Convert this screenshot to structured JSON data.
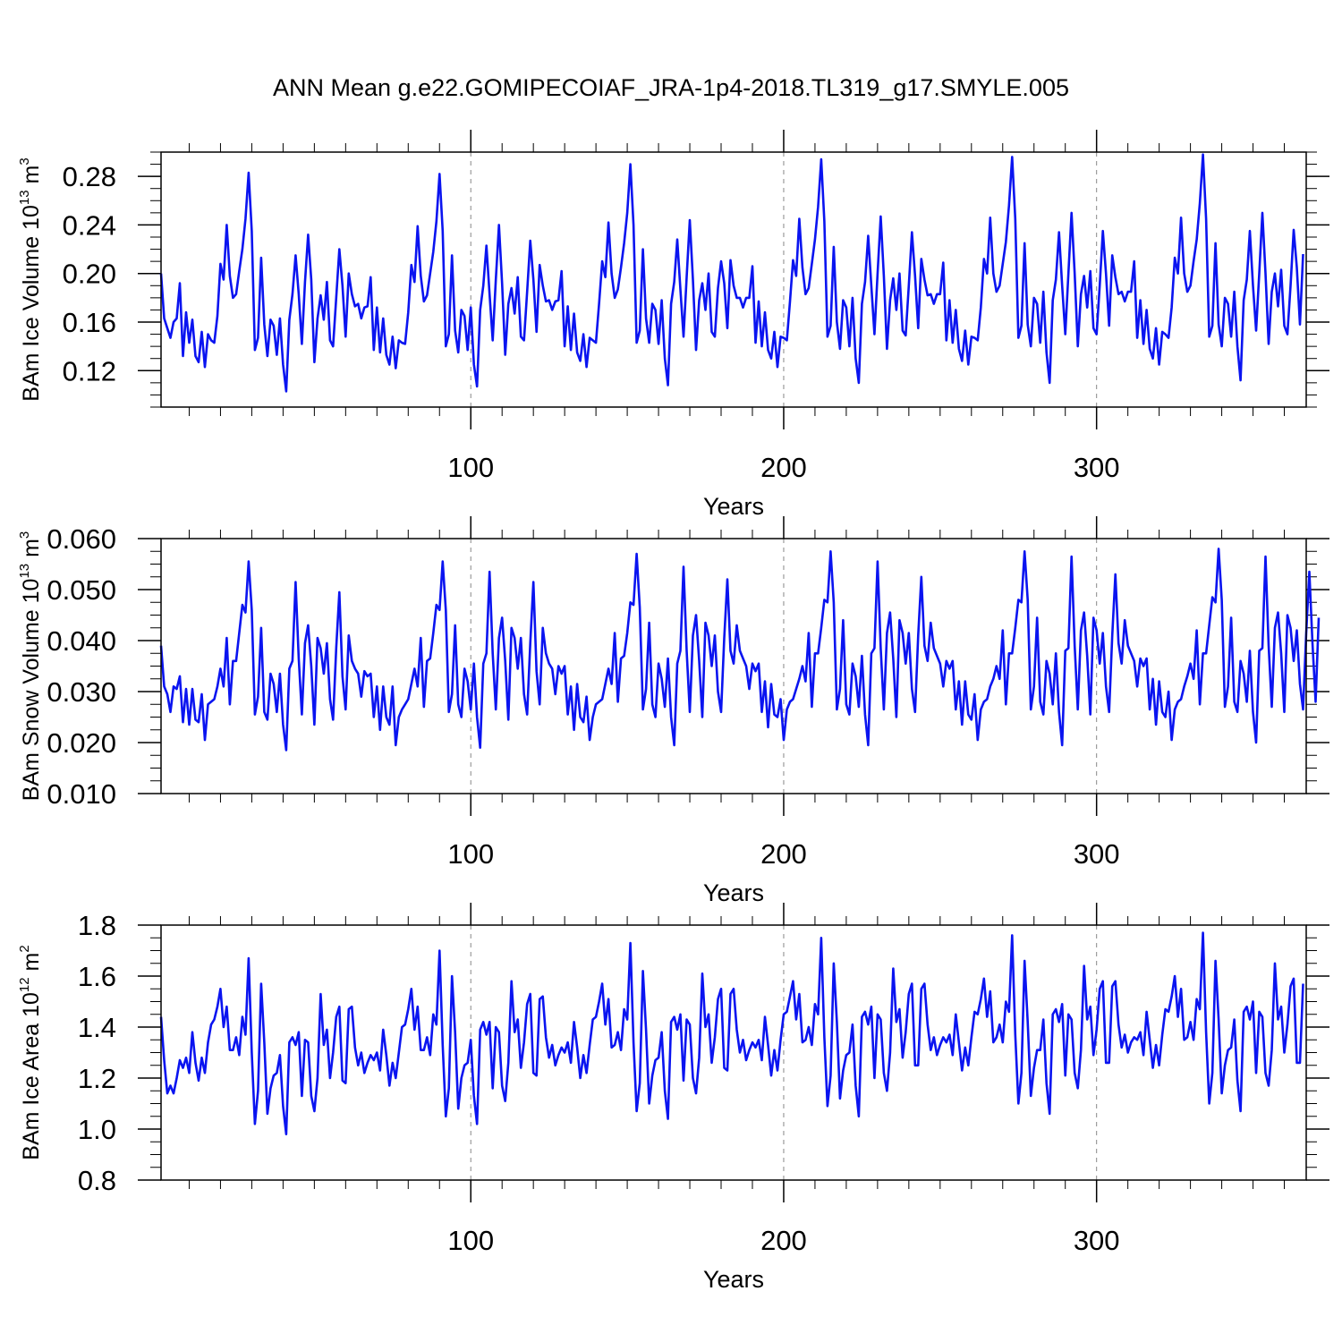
{
  "figure": {
    "title": "ANN Mean g.e22.GOMIPECOIAF_JRA-1p4-2018.TL319_g17.SMYLE.005"
  },
  "chart_data": [
    {
      "type": "line",
      "title": "",
      "xlabel": "Years",
      "ylabel_main": "BAm Ice Volume 10",
      "ylabel_exp": "13",
      "ylabel_unit": " m",
      "ylabel_unit_exp": "3",
      "xlim": [
        1,
        367
      ],
      "ylim": [
        0.09,
        0.3
      ],
      "xticks": [
        100,
        200,
        300
      ],
      "xtick_labels": [
        "100",
        "200",
        "300"
      ],
      "yticks": [
        0.12,
        0.16,
        0.2,
        0.24,
        0.28
      ],
      "ytick_labels": [
        "0.12",
        "0.16",
        "0.20",
        "0.24",
        "0.28"
      ],
      "grid_x": "dashed at major ticks",
      "color": "#0a14f0",
      "x_start": 1,
      "values": [
        0.2,
        0.163,
        0.155,
        0.147,
        0.16,
        0.163,
        0.192,
        0.132,
        0.168,
        0.143,
        0.162,
        0.132,
        0.127,
        0.152,
        0.123,
        0.15,
        0.145,
        0.143,
        0.165,
        0.208,
        0.195,
        0.24,
        0.198,
        0.18,
        0.183,
        0.202,
        0.22,
        0.245,
        0.283,
        0.235,
        0.137,
        0.147,
        0.213,
        0.158,
        0.132,
        0.162,
        0.157,
        0.133,
        0.163,
        0.125,
        0.103,
        0.162,
        0.183,
        0.215,
        0.183,
        0.142,
        0.193,
        0.232,
        0.195,
        0.127,
        0.163,
        0.182,
        0.162,
        0.193,
        0.145,
        0.14,
        0.18,
        0.22,
        0.19,
        0.148,
        0.2,
        0.183,
        0.173,
        0.175,
        0.163,
        0.172,
        0.173,
        0.197,
        0.137,
        0.172,
        0.135,
        0.163,
        0.133,
        0.125,
        0.148,
        0.122,
        0.145,
        0.143,
        0.142,
        0.168,
        0.207,
        0.193,
        0.239,
        0.198,
        0.177,
        0.182,
        0.2,
        0.218,
        0.243,
        0.282,
        0.235,
        0.14,
        0.15,
        0.215,
        0.153,
        0.135,
        0.17,
        0.165,
        0.137,
        0.172,
        0.125,
        0.107,
        0.17,
        0.19,
        0.223,
        0.183,
        0.145,
        0.195,
        0.24,
        0.192,
        0.133,
        0.175,
        0.188,
        0.167,
        0.197,
        0.148,
        0.145,
        0.185,
        0.227,
        0.195,
        0.152,
        0.207,
        0.19,
        0.177,
        0.178,
        0.17,
        0.177,
        0.178,
        0.202,
        0.14,
        0.173,
        0.137,
        0.167,
        0.135,
        0.128,
        0.15,
        0.123,
        0.147,
        0.145,
        0.143,
        0.175,
        0.21,
        0.197,
        0.242,
        0.2,
        0.18,
        0.187,
        0.205,
        0.225,
        0.25,
        0.29,
        0.24,
        0.143,
        0.153,
        0.22,
        0.163,
        0.143,
        0.175,
        0.17,
        0.142,
        0.178,
        0.13,
        0.108,
        0.175,
        0.193,
        0.228,
        0.187,
        0.148,
        0.197,
        0.244,
        0.195,
        0.137,
        0.178,
        0.192,
        0.17,
        0.2,
        0.152,
        0.148,
        0.188,
        0.21,
        0.192,
        0.155,
        0.211,
        0.19,
        0.18,
        0.18,
        0.172,
        0.18,
        0.18,
        0.206,
        0.143,
        0.177,
        0.14,
        0.168,
        0.137,
        0.13,
        0.152,
        0.123,
        0.148,
        0.147,
        0.145,
        0.177,
        0.211,
        0.198,
        0.245,
        0.205,
        0.183,
        0.188,
        0.208,
        0.228,
        0.255,
        0.294,
        0.243,
        0.148,
        0.157,
        0.222,
        0.16,
        0.138,
        0.178,
        0.172,
        0.14,
        0.18,
        0.13,
        0.11,
        0.175,
        0.193,
        0.231,
        0.19,
        0.15,
        0.2,
        0.247,
        0.198,
        0.138,
        0.178,
        0.196,
        0.17,
        0.2,
        0.153,
        0.149,
        0.19,
        0.234,
        0.198,
        0.155,
        0.212,
        0.195,
        0.182,
        0.183,
        0.175,
        0.183,
        0.183,
        0.209,
        0.145,
        0.178,
        0.143,
        0.17,
        0.138,
        0.128,
        0.153,
        0.125,
        0.148,
        0.147,
        0.145,
        0.172,
        0.212,
        0.2,
        0.246,
        0.2,
        0.185,
        0.19,
        0.208,
        0.226,
        0.256,
        0.296,
        0.245,
        0.147,
        0.157,
        0.225,
        0.158,
        0.14,
        0.18,
        0.175,
        0.143,
        0.185,
        0.135,
        0.11,
        0.178,
        0.195,
        0.234,
        0.19,
        0.15,
        0.2,
        0.25,
        0.2,
        0.14,
        0.183,
        0.198,
        0.172,
        0.202,
        0.155,
        0.15,
        0.19,
        0.235,
        0.2,
        0.157,
        0.215,
        0.197,
        0.183,
        0.185,
        0.177,
        0.185,
        0.185,
        0.21,
        0.147,
        0.178,
        0.142,
        0.17,
        0.138,
        0.13,
        0.155,
        0.125,
        0.152,
        0.15,
        0.147,
        0.172,
        0.213,
        0.2,
        0.246,
        0.2,
        0.185,
        0.19,
        0.21,
        0.228,
        0.258,
        0.298,
        0.245,
        0.148,
        0.157,
        0.225,
        0.158,
        0.14,
        0.18,
        0.175,
        0.148,
        0.185,
        0.14,
        0.112,
        0.178,
        0.195,
        0.235,
        0.19,
        0.153,
        0.2,
        0.25,
        0.2,
        0.142,
        0.185,
        0.2,
        0.173,
        0.203,
        0.157,
        0.15,
        0.19,
        0.236,
        0.205,
        0.158,
        0.216
      ]
    },
    {
      "type": "line",
      "title": "",
      "xlabel": "Years",
      "ylabel_main": "BAm Snow Volume 10",
      "ylabel_exp": "13",
      "ylabel_unit": " m",
      "ylabel_unit_exp": "3",
      "xlim": [
        1,
        367
      ],
      "ylim": [
        0.01,
        0.06
      ],
      "xticks": [
        100,
        200,
        300
      ],
      "xtick_labels": [
        "100",
        "200",
        "300"
      ],
      "yticks": [
        0.01,
        0.02,
        0.03,
        0.04,
        0.05,
        0.06
      ],
      "ytick_labels": [
        "0.010",
        "0.020",
        "0.030",
        "0.040",
        "0.050",
        "0.060"
      ],
      "grid_x": "dashed at major ticks",
      "color": "#0a14f0",
      "x_start": 1,
      "values": [
        0.039,
        0.031,
        0.0295,
        0.026,
        0.031,
        0.0305,
        0.033,
        0.024,
        0.0305,
        0.0235,
        0.0305,
        0.0245,
        0.024,
        0.0295,
        0.0205,
        0.0275,
        0.028,
        0.0285,
        0.031,
        0.0345,
        0.031,
        0.0405,
        0.0275,
        0.036,
        0.036,
        0.0415,
        0.047,
        0.0455,
        0.0555,
        0.046,
        0.0255,
        0.029,
        0.0425,
        0.026,
        0.0245,
        0.0335,
        0.0315,
        0.026,
        0.0335,
        0.0235,
        0.0185,
        0.0345,
        0.036,
        0.0515,
        0.0365,
        0.0255,
        0.0395,
        0.043,
        0.035,
        0.0235,
        0.0405,
        0.0385,
        0.0335,
        0.0395,
        0.0285,
        0.0245,
        0.0385,
        0.0495,
        0.033,
        0.0265,
        0.041,
        0.036,
        0.0345,
        0.0335,
        0.029,
        0.034,
        0.033,
        0.0335,
        0.025,
        0.031,
        0.0225,
        0.031,
        0.025,
        0.0235,
        0.031,
        0.0195,
        0.025,
        0.0265,
        0.0275,
        0.0285,
        0.0315,
        0.0345,
        0.031,
        0.0405,
        0.027,
        0.036,
        0.0365,
        0.0415,
        0.047,
        0.046,
        0.0555,
        0.046,
        0.026,
        0.0295,
        0.043,
        0.0275,
        0.025,
        0.0345,
        0.032,
        0.0265,
        0.0355,
        0.025,
        0.019,
        0.0355,
        0.0375,
        0.0535,
        0.0375,
        0.0265,
        0.0405,
        0.0445,
        0.036,
        0.0245,
        0.0425,
        0.0405,
        0.0345,
        0.0405,
        0.0295,
        0.0255,
        0.0395,
        0.0515,
        0.034,
        0.0275,
        0.0425,
        0.0375,
        0.0355,
        0.0345,
        0.0295,
        0.035,
        0.0335,
        0.035,
        0.0255,
        0.031,
        0.0225,
        0.0315,
        0.025,
        0.024,
        0.029,
        0.0205,
        0.025,
        0.0275,
        0.028,
        0.0285,
        0.0315,
        0.0345,
        0.0315,
        0.0415,
        0.028,
        0.0365,
        0.037,
        0.0415,
        0.0475,
        0.047,
        0.057,
        0.0465,
        0.0265,
        0.0305,
        0.0435,
        0.0275,
        0.025,
        0.0355,
        0.0325,
        0.027,
        0.0365,
        0.025,
        0.0195,
        0.0355,
        0.038,
        0.0545,
        0.038,
        0.026,
        0.041,
        0.045,
        0.036,
        0.025,
        0.0435,
        0.041,
        0.035,
        0.041,
        0.03,
        0.026,
        0.0405,
        0.052,
        0.038,
        0.0355,
        0.043,
        0.038,
        0.0365,
        0.035,
        0.0305,
        0.0355,
        0.034,
        0.0355,
        0.026,
        0.032,
        0.023,
        0.0315,
        0.0255,
        0.025,
        0.0285,
        0.0205,
        0.0265,
        0.028,
        0.0285,
        0.0305,
        0.0325,
        0.035,
        0.032,
        0.0415,
        0.027,
        0.0375,
        0.0375,
        0.0425,
        0.048,
        0.0475,
        0.0575,
        0.0475,
        0.0265,
        0.0305,
        0.044,
        0.0275,
        0.0255,
        0.0355,
        0.033,
        0.027,
        0.037,
        0.0255,
        0.0195,
        0.0375,
        0.0385,
        0.0555,
        0.0385,
        0.0265,
        0.0415,
        0.0455,
        0.0365,
        0.025,
        0.044,
        0.0415,
        0.0355,
        0.0415,
        0.0305,
        0.026,
        0.041,
        0.0525,
        0.039,
        0.036,
        0.0435,
        0.0385,
        0.037,
        0.0355,
        0.031,
        0.036,
        0.0345,
        0.036,
        0.0265,
        0.032,
        0.0235,
        0.032,
        0.0255,
        0.0245,
        0.0295,
        0.0205,
        0.0265,
        0.028,
        0.0285,
        0.031,
        0.0325,
        0.035,
        0.0325,
        0.042,
        0.0275,
        0.0375,
        0.0375,
        0.0425,
        0.048,
        0.0475,
        0.0575,
        0.048,
        0.0265,
        0.031,
        0.0445,
        0.028,
        0.0255,
        0.036,
        0.0335,
        0.0275,
        0.0375,
        0.026,
        0.0195,
        0.038,
        0.0385,
        0.0565,
        0.039,
        0.0265,
        0.042,
        0.0455,
        0.037,
        0.0255,
        0.0445,
        0.042,
        0.0355,
        0.0415,
        0.031,
        0.026,
        0.041,
        0.053,
        0.0395,
        0.0355,
        0.044,
        0.039,
        0.0375,
        0.036,
        0.031,
        0.0365,
        0.035,
        0.0365,
        0.0265,
        0.0325,
        0.0235,
        0.032,
        0.026,
        0.025,
        0.03,
        0.0205,
        0.0265,
        0.028,
        0.0285,
        0.031,
        0.033,
        0.0355,
        0.0325,
        0.042,
        0.0275,
        0.0375,
        0.0375,
        0.043,
        0.0485,
        0.0475,
        0.058,
        0.048,
        0.027,
        0.031,
        0.0445,
        0.028,
        0.026,
        0.036,
        0.0335,
        0.028,
        0.038,
        0.026,
        0.02,
        0.038,
        0.0385,
        0.0565,
        0.039,
        0.027,
        0.0425,
        0.0455,
        0.0375,
        0.026,
        0.045,
        0.0425,
        0.036,
        0.042,
        0.0315,
        0.0265,
        0.0415,
        0.0535,
        0.0395,
        0.028,
        0.0445
      ]
    },
    {
      "type": "line",
      "title": "",
      "xlabel": "Years",
      "ylabel_main": "BAm Ice Area 10",
      "ylabel_exp": "12",
      "ylabel_unit": " m",
      "ylabel_unit_exp": "2",
      "xlim": [
        1,
        367
      ],
      "ylim": [
        0.8,
        1.8
      ],
      "xticks": [
        100,
        200,
        300
      ],
      "xtick_labels": [
        "100",
        "200",
        "300"
      ],
      "yticks": [
        0.8,
        1.0,
        1.2,
        1.4,
        1.6,
        1.8
      ],
      "ytick_labels": [
        "0.8",
        "1.0",
        "1.2",
        "1.4",
        "1.6",
        "1.8"
      ],
      "grid_x": "dashed at major ticks",
      "color": "#0a14f0",
      "x_start": 1,
      "values": [
        1.44,
        1.27,
        1.14,
        1.17,
        1.14,
        1.2,
        1.27,
        1.24,
        1.28,
        1.22,
        1.38,
        1.26,
        1.19,
        1.28,
        1.22,
        1.34,
        1.41,
        1.43,
        1.48,
        1.55,
        1.4,
        1.48,
        1.31,
        1.31,
        1.36,
        1.29,
        1.44,
        1.37,
        1.67,
        1.3,
        1.02,
        1.15,
        1.57,
        1.34,
        1.06,
        1.16,
        1.21,
        1.22,
        1.29,
        1.09,
        0.98,
        1.34,
        1.36,
        1.33,
        1.38,
        1.13,
        1.35,
        1.34,
        1.13,
        1.07,
        1.2,
        1.53,
        1.33,
        1.39,
        1.2,
        1.3,
        1.44,
        1.48,
        1.19,
        1.18,
        1.47,
        1.48,
        1.32,
        1.25,
        1.3,
        1.22,
        1.26,
        1.29,
        1.27,
        1.3,
        1.23,
        1.39,
        1.29,
        1.17,
        1.26,
        1.2,
        1.3,
        1.4,
        1.41,
        1.47,
        1.55,
        1.39,
        1.48,
        1.31,
        1.31,
        1.36,
        1.29,
        1.45,
        1.41,
        1.7,
        1.33,
        1.05,
        1.16,
        1.6,
        1.38,
        1.08,
        1.2,
        1.25,
        1.26,
        1.35,
        1.13,
        1.02,
        1.39,
        1.42,
        1.37,
        1.42,
        1.16,
        1.4,
        1.38,
        1.17,
        1.11,
        1.26,
        1.58,
        1.38,
        1.43,
        1.24,
        1.34,
        1.49,
        1.53,
        1.22,
        1.21,
        1.51,
        1.52,
        1.36,
        1.28,
        1.33,
        1.25,
        1.29,
        1.32,
        1.3,
        1.34,
        1.26,
        1.42,
        1.32,
        1.2,
        1.29,
        1.22,
        1.33,
        1.43,
        1.44,
        1.5,
        1.57,
        1.41,
        1.51,
        1.32,
        1.33,
        1.38,
        1.31,
        1.47,
        1.43,
        1.73,
        1.34,
        1.07,
        1.18,
        1.62,
        1.39,
        1.1,
        1.21,
        1.27,
        1.28,
        1.38,
        1.15,
        1.04,
        1.42,
        1.44,
        1.39,
        1.45,
        1.19,
        1.43,
        1.41,
        1.2,
        1.14,
        1.28,
        1.61,
        1.4,
        1.45,
        1.26,
        1.36,
        1.51,
        1.55,
        1.24,
        1.23,
        1.53,
        1.55,
        1.39,
        1.3,
        1.35,
        1.27,
        1.31,
        1.34,
        1.32,
        1.35,
        1.27,
        1.44,
        1.33,
        1.21,
        1.31,
        1.23,
        1.35,
        1.45,
        1.46,
        1.52,
        1.58,
        1.43,
        1.53,
        1.34,
        1.35,
        1.4,
        1.33,
        1.49,
        1.45,
        1.75,
        1.36,
        1.09,
        1.21,
        1.65,
        1.42,
        1.12,
        1.23,
        1.29,
        1.3,
        1.41,
        1.17,
        1.05,
        1.44,
        1.46,
        1.41,
        1.48,
        1.2,
        1.45,
        1.43,
        1.22,
        1.15,
        1.3,
        1.63,
        1.42,
        1.47,
        1.28,
        1.38,
        1.53,
        1.57,
        1.25,
        1.25,
        1.55,
        1.57,
        1.41,
        1.31,
        1.36,
        1.29,
        1.33,
        1.36,
        1.34,
        1.37,
        1.29,
        1.45,
        1.34,
        1.23,
        1.32,
        1.25,
        1.36,
        1.46,
        1.45,
        1.51,
        1.59,
        1.44,
        1.54,
        1.34,
        1.36,
        1.41,
        1.34,
        1.5,
        1.46,
        1.76,
        1.37,
        1.1,
        1.22,
        1.66,
        1.42,
        1.13,
        1.24,
        1.31,
        1.31,
        1.43,
        1.18,
        1.06,
        1.45,
        1.47,
        1.42,
        1.49,
        1.21,
        1.45,
        1.43,
        1.22,
        1.16,
        1.31,
        1.64,
        1.43,
        1.48,
        1.29,
        1.39,
        1.55,
        1.58,
        1.26,
        1.26,
        1.56,
        1.58,
        1.41,
        1.32,
        1.37,
        1.3,
        1.34,
        1.36,
        1.35,
        1.38,
        1.29,
        1.46,
        1.35,
        1.24,
        1.33,
        1.25,
        1.37,
        1.47,
        1.46,
        1.52,
        1.6,
        1.44,
        1.55,
        1.35,
        1.36,
        1.42,
        1.35,
        1.51,
        1.47,
        1.77,
        1.38,
        1.1,
        1.22,
        1.66,
        1.43,
        1.14,
        1.25,
        1.31,
        1.32,
        1.43,
        1.19,
        1.07,
        1.46,
        1.48,
        1.43,
        1.5,
        1.22,
        1.46,
        1.44,
        1.22,
        1.17,
        1.31,
        1.65,
        1.43,
        1.48,
        1.3,
        1.41,
        1.56,
        1.59,
        1.26,
        1.26,
        1.57
      ]
    }
  ]
}
